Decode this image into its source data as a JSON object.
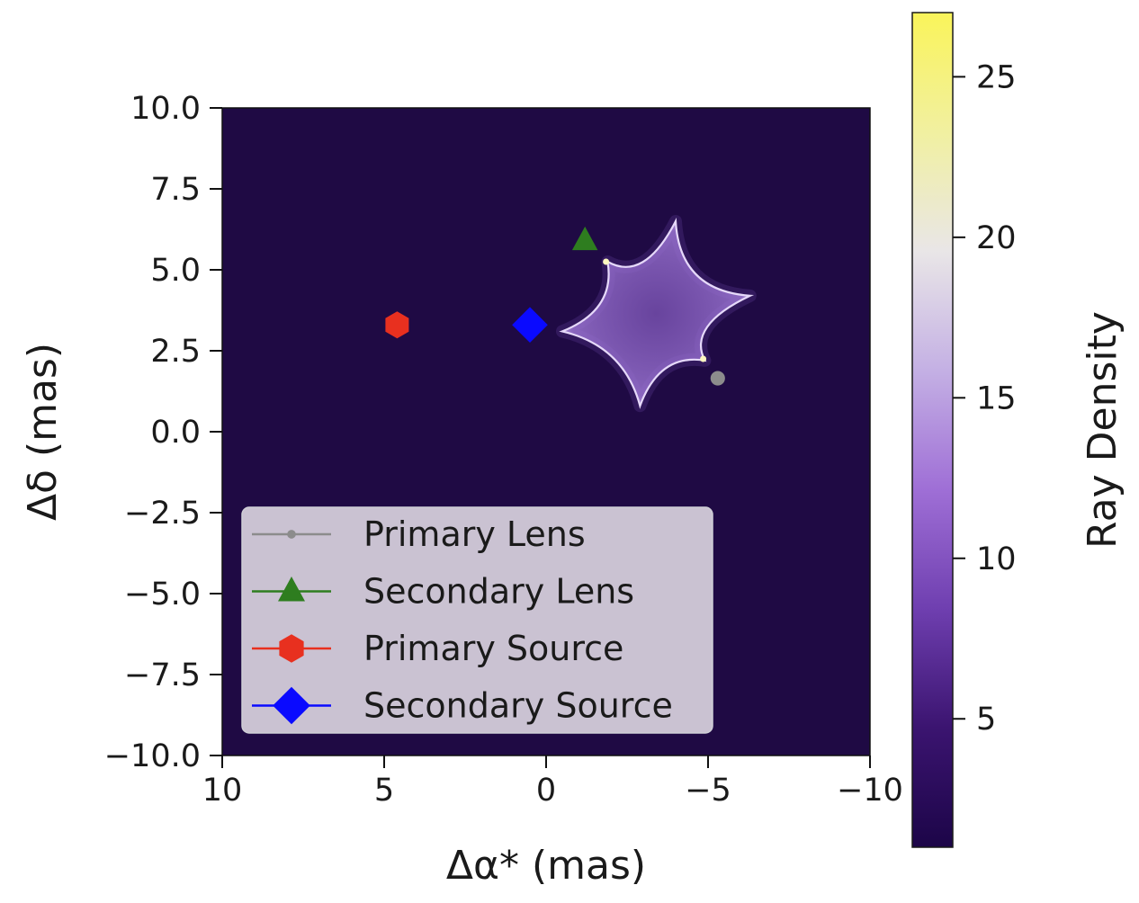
{
  "chart_data": {
    "type": "scatter",
    "title": "",
    "xlabel": "Δα* (mas)",
    "ylabel": "Δδ (mas)",
    "xlim": [
      10,
      -10
    ],
    "ylim": [
      -10,
      10
    ],
    "x_ticks": [
      10,
      5,
      0,
      -5,
      -10
    ],
    "x_tick_labels": [
      "10",
      "5",
      "0",
      "−5",
      "−10"
    ],
    "y_ticks": [
      10,
      7.5,
      5,
      2.5,
      0,
      -2.5,
      -5,
      -7.5,
      -10
    ],
    "y_tick_labels": [
      "10.0",
      "7.5",
      "5.0",
      "2.5",
      "0.0",
      "−2.5",
      "−5.0",
      "−7.5",
      "−10.0"
    ],
    "grid": false,
    "background_color": "#1f0a44",
    "legend_position": "lower-left",
    "series": [
      {
        "name": "Primary Lens",
        "marker": "circle",
        "color": "#8c8c8c",
        "x": -5.3,
        "y": 1.65
      },
      {
        "name": "Secondary Lens",
        "marker": "triangle",
        "color": "#2e7d1f",
        "x": -1.2,
        "y": 5.9
      },
      {
        "name": "Primary Source",
        "marker": "hexagon",
        "color": "#e8301f",
        "x": 4.6,
        "y": 3.3
      },
      {
        "name": "Secondary Source",
        "marker": "diamond",
        "color": "#0a0aff",
        "x": 0.5,
        "y": 3.3
      }
    ],
    "caustic": {
      "center": [
        -3.1,
        3.35
      ],
      "cusps": [
        [
          -4.0,
          6.5
        ],
        [
          -6.3,
          4.2
        ],
        [
          -4.9,
          2.2
        ],
        [
          -2.9,
          0.8
        ],
        [
          -0.5,
          3.1
        ],
        [
          -1.9,
          5.25
        ]
      ]
    },
    "colorbar": {
      "label": "Ray Density",
      "range": [
        1,
        27
      ],
      "ticks": [
        5,
        10,
        15,
        20,
        25
      ],
      "tick_labels": [
        "5",
        "10",
        "15",
        "20",
        "25"
      ],
      "colors": [
        "#1c0548",
        "#3b1470",
        "#6f3fb0",
        "#9f6fd6",
        "#c4b0e4",
        "#e9e6e7",
        "#f1f0a0",
        "#faf45a"
      ]
    }
  }
}
